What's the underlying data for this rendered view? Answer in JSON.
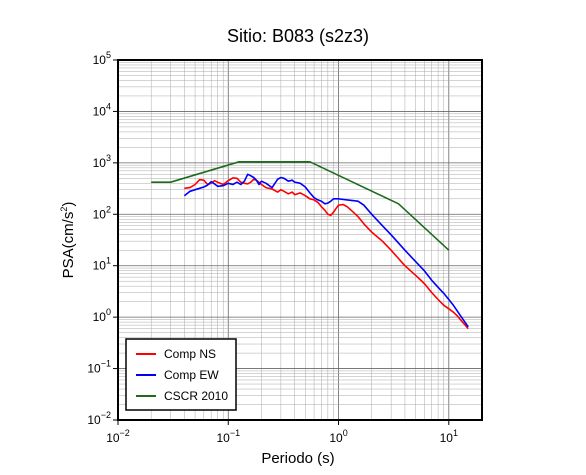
{
  "chart_data": {
    "type": "line",
    "title": "Sitio: B083 (s2z3)",
    "xlabel": "Periodo (s)",
    "ylabel": {
      "base": "PSA(cm/s",
      "exp": "2",
      "close": ")"
    },
    "x_scale": "log",
    "y_scale": "log",
    "xlim": [
      0.01,
      20
    ],
    "ylim": [
      0.01,
      100000
    ],
    "grid": true,
    "legend_position": "bottom-left",
    "x_ticks": [
      {
        "base": "10",
        "exp": "−2",
        "value": 0.01
      },
      {
        "base": "10",
        "exp": "−1",
        "value": 0.1
      },
      {
        "base": "10",
        "exp": "0",
        "value": 1
      },
      {
        "base": "10",
        "exp": "1",
        "value": 10
      }
    ],
    "y_ticks": [
      {
        "base": "10",
        "exp": "−2",
        "value": 0.01
      },
      {
        "base": "10",
        "exp": "−1",
        "value": 0.1
      },
      {
        "base": "10",
        "exp": "0",
        "value": 1
      },
      {
        "base": "10",
        "exp": "1",
        "value": 10
      },
      {
        "base": "10",
        "exp": "2",
        "value": 100
      },
      {
        "base": "10",
        "exp": "3",
        "value": 1000
      },
      {
        "base": "10",
        "exp": "4",
        "value": 10000
      },
      {
        "base": "10",
        "exp": "5",
        "value": 100000
      }
    ],
    "series": [
      {
        "name": "Comp NS",
        "color": "#ff0000",
        "points": [
          [
            0.04,
            320
          ],
          [
            0.045,
            330
          ],
          [
            0.05,
            380
          ],
          [
            0.055,
            470
          ],
          [
            0.06,
            460
          ],
          [
            0.065,
            380
          ],
          [
            0.07,
            400
          ],
          [
            0.075,
            450
          ],
          [
            0.08,
            420
          ],
          [
            0.09,
            380
          ],
          [
            0.1,
            450
          ],
          [
            0.11,
            510
          ],
          [
            0.12,
            500
          ],
          [
            0.13,
            420
          ],
          [
            0.14,
            400
          ],
          [
            0.15,
            390
          ],
          [
            0.16,
            420
          ],
          [
            0.17,
            480
          ],
          [
            0.18,
            460
          ],
          [
            0.19,
            420
          ],
          [
            0.2,
            380
          ],
          [
            0.22,
            330
          ],
          [
            0.25,
            310
          ],
          [
            0.28,
            270
          ],
          [
            0.3,
            300
          ],
          [
            0.32,
            280
          ],
          [
            0.35,
            250
          ],
          [
            0.38,
            270
          ],
          [
            0.4,
            240
          ],
          [
            0.45,
            260
          ],
          [
            0.5,
            230
          ],
          [
            0.55,
            200
          ],
          [
            0.6,
            190
          ],
          [
            0.65,
            170
          ],
          [
            0.7,
            140
          ],
          [
            0.75,
            120
          ],
          [
            0.8,
            100
          ],
          [
            0.85,
            95
          ],
          [
            0.9,
            110
          ],
          [
            0.95,
            130
          ],
          [
            1.0,
            150
          ],
          [
            1.1,
            155
          ],
          [
            1.2,
            140
          ],
          [
            1.3,
            120
          ],
          [
            1.5,
            90
          ],
          [
            1.7,
            65
          ],
          [
            2.0,
            45
          ],
          [
            2.5,
            30
          ],
          [
            3.0,
            20
          ],
          [
            4.0,
            10
          ],
          [
            5.0,
            6.5
          ],
          [
            6.0,
            4.5
          ],
          [
            7.0,
            3.0
          ],
          [
            8.0,
            2.2
          ],
          [
            9.0,
            1.7
          ],
          [
            10.0,
            1.45
          ],
          [
            11.0,
            1.25
          ],
          [
            12.0,
            1.05
          ],
          [
            13.0,
            0.85
          ],
          [
            15.0,
            0.6
          ]
        ]
      },
      {
        "name": "Comp EW",
        "color": "#0000ff",
        "points": [
          [
            0.04,
            230
          ],
          [
            0.045,
            280
          ],
          [
            0.05,
            300
          ],
          [
            0.055,
            320
          ],
          [
            0.06,
            340
          ],
          [
            0.065,
            370
          ],
          [
            0.07,
            430
          ],
          [
            0.075,
            390
          ],
          [
            0.08,
            350
          ],
          [
            0.09,
            360
          ],
          [
            0.1,
            400
          ],
          [
            0.11,
            380
          ],
          [
            0.12,
            420
          ],
          [
            0.13,
            380
          ],
          [
            0.14,
            440
          ],
          [
            0.15,
            600
          ],
          [
            0.16,
            560
          ],
          [
            0.17,
            520
          ],
          [
            0.18,
            460
          ],
          [
            0.19,
            380
          ],
          [
            0.2,
            440
          ],
          [
            0.22,
            400
          ],
          [
            0.25,
            330
          ],
          [
            0.28,
            480
          ],
          [
            0.3,
            520
          ],
          [
            0.32,
            500
          ],
          [
            0.35,
            440
          ],
          [
            0.38,
            460
          ],
          [
            0.4,
            420
          ],
          [
            0.45,
            400
          ],
          [
            0.5,
            340
          ],
          [
            0.55,
            260
          ],
          [
            0.6,
            210
          ],
          [
            0.65,
            190
          ],
          [
            0.7,
            180
          ],
          [
            0.75,
            160
          ],
          [
            0.8,
            165
          ],
          [
            0.85,
            180
          ],
          [
            0.9,
            200
          ],
          [
            1.0,
            200
          ],
          [
            1.2,
            190
          ],
          [
            1.5,
            180
          ],
          [
            1.7,
            150
          ],
          [
            2.0,
            100
          ],
          [
            2.5,
            60
          ],
          [
            3.0,
            40
          ],
          [
            4.0,
            20
          ],
          [
            5.0,
            12
          ],
          [
            6.0,
            8
          ],
          [
            7.0,
            5.2
          ],
          [
            8.0,
            3.8
          ],
          [
            9.0,
            2.9
          ],
          [
            10.0,
            2.2
          ],
          [
            11.0,
            1.7
          ],
          [
            12.0,
            1.3
          ],
          [
            13.0,
            1.0
          ],
          [
            14.0,
            0.8
          ],
          [
            15.0,
            0.65
          ]
        ]
      },
      {
        "name": "CSCR 2010",
        "color": "#1e6b1e",
        "points": [
          [
            0.02,
            420
          ],
          [
            0.03,
            420
          ],
          [
            0.125,
            1050
          ],
          [
            0.55,
            1050
          ],
          [
            3.5,
            160
          ],
          [
            10.0,
            20
          ]
        ]
      }
    ]
  }
}
